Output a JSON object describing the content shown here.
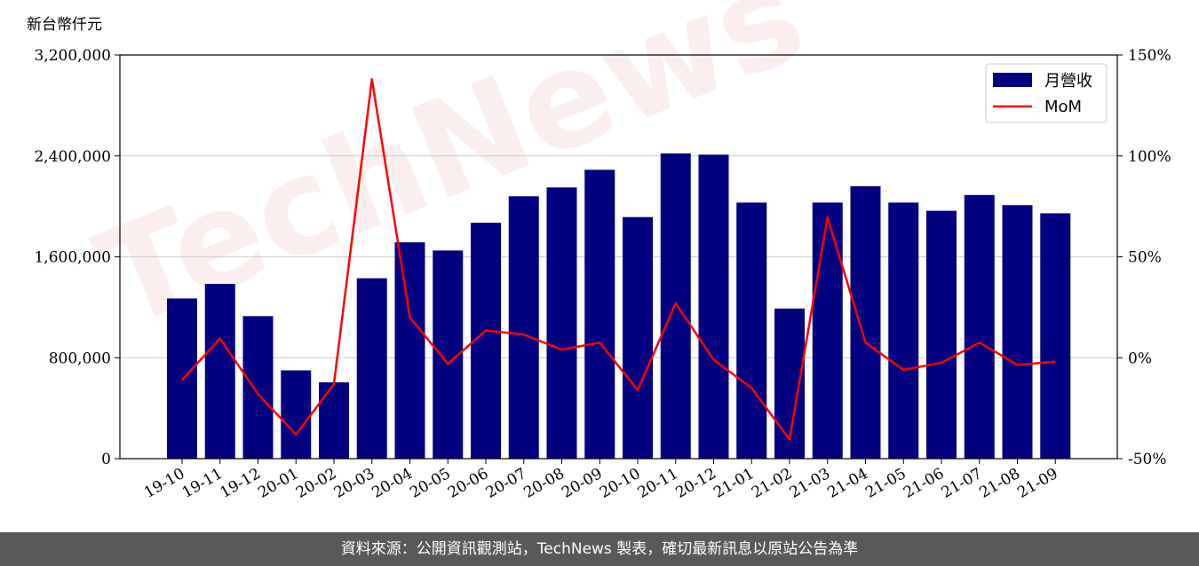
{
  "chart_data": {
    "type": "bar",
    "y_unit_label": "新台幣仟元",
    "categories": [
      "19-10",
      "19-11",
      "19-12",
      "20-01",
      "20-02",
      "20-03",
      "20-04",
      "20-05",
      "20-06",
      "20-07",
      "20-08",
      "20-09",
      "20-10",
      "20-11",
      "20-12",
      "21-01",
      "21-02",
      "21-03",
      "21-04",
      "21-05",
      "21-06",
      "21-07",
      "21-08",
      "21-09"
    ],
    "series": [
      {
        "name": "月營收",
        "type": "bar",
        "axis": "left",
        "color": "#000080",
        "values": [
          1270000,
          1385000,
          1130000,
          700000,
          605000,
          1430000,
          1715000,
          1650000,
          1870000,
          2080000,
          2150000,
          2290000,
          1915000,
          2420000,
          2410000,
          2030000,
          1190000,
          2030000,
          2160000,
          2030000,
          1965000,
          2090000,
          2010000,
          1945000
        ]
      },
      {
        "name": "MoM",
        "type": "line",
        "axis": "right",
        "color": "#ff0000",
        "values": [
          -11,
          9.5,
          -18,
          -38,
          -13,
          138,
          20,
          -3,
          13.5,
          11.5,
          4,
          7.5,
          -16,
          27,
          -1,
          -15,
          -40.5,
          69.5,
          7.5,
          -6,
          -2.5,
          7.5,
          -3.5,
          -2
        ]
      }
    ],
    "y_left": {
      "lim": [
        0,
        3200000
      ],
      "ticks": [
        "0",
        "800,000",
        "1,600,000",
        "2,400,000",
        "3,200,000"
      ],
      "tick_values": [
        0,
        800000,
        1600000,
        2400000,
        3200000
      ]
    },
    "y_right": {
      "lim": [
        -50,
        150
      ],
      "ticks": [
        "-50%",
        "0%",
        "50%",
        "100%",
        "150%"
      ],
      "tick_values": [
        -50,
        0,
        50,
        100,
        150
      ]
    },
    "grid": "horizontal",
    "legend_position": "top-right",
    "watermark": "TechNews"
  },
  "footer": {
    "source_text": "資料來源：公開資訊觀測站，TechNews 製表，確切最新訊息以原站公告為準"
  }
}
